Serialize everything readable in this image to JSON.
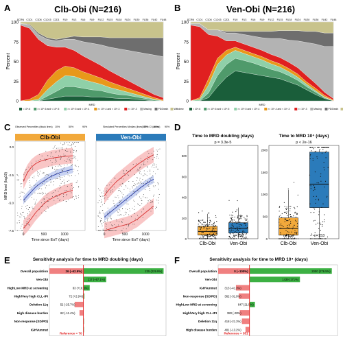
{
  "panels": {
    "A": {
      "letter": "A",
      "title": "Clb-Obi (N=216)"
    },
    "B": {
      "letter": "B",
      "title": "Ven-Obi (N=216)"
    },
    "C": {
      "letter": "C"
    },
    "D": {
      "letter": "D"
    },
    "E": {
      "letter": "E"
    },
    "F": {
      "letter": "F"
    }
  },
  "chart_data": [
    {
      "id": "A",
      "type": "area",
      "title": "Clb-Obi (N=216)",
      "ylabel": "Percent",
      "xlabel": "MRD",
      "ylim": [
        0,
        100
      ],
      "yticks": [
        0,
        25,
        50,
        75,
        100
      ],
      "categories": [
        "SCRN",
        "C1D1",
        "C1D8",
        "C1D15",
        "C2D1",
        "FU0",
        "FU3",
        "FU6",
        "FU9",
        "FU12",
        "FU15",
        "FU18",
        "FU24",
        "FU30",
        "FU36",
        "FU42",
        "FU48"
      ],
      "series": [
        {
          "name": "< 10^-6",
          "color": "#1a5e3a",
          "values": [
            0,
            0,
            0,
            2,
            4,
            6,
            6,
            6,
            5,
            5,
            4,
            3,
            3,
            2,
            1,
            0,
            0
          ]
        },
        {
          "name": ">= 10^-6 and < 10^-5",
          "color": "#4f9a6b",
          "values": [
            0,
            0,
            0,
            4,
            8,
            12,
            12,
            10,
            9,
            8,
            6,
            5,
            4,
            3,
            2,
            1,
            0
          ]
        },
        {
          "name": ">= 10^-5 and < 10^-4",
          "color": "#8fd0a8",
          "values": [
            0,
            0,
            2,
            8,
            12,
            14,
            13,
            11,
            10,
            8,
            7,
            6,
            4,
            3,
            2,
            1,
            0
          ]
        },
        {
          "name": ">= 10^-4 and < 10^-3",
          "color": "#e8981a",
          "values": [
            0,
            2,
            6,
            12,
            14,
            12,
            11,
            10,
            9,
            8,
            7,
            6,
            5,
            4,
            3,
            2,
            1
          ]
        },
        {
          "name": ">= 10^-3",
          "color": "#e02020",
          "values": [
            96,
            90,
            70,
            44,
            30,
            24,
            22,
            20,
            18,
            16,
            14,
            12,
            10,
            8,
            6,
            4,
            3
          ]
        },
        {
          "name": "Missing",
          "color": "#b3b3b3",
          "values": [
            2,
            4,
            6,
            8,
            8,
            10,
            14,
            18,
            22,
            26,
            30,
            34,
            38,
            42,
            46,
            50,
            52
          ]
        },
        {
          "name": "PD/Death",
          "color": "#6e6e6e",
          "values": [
            0,
            1,
            2,
            2,
            2,
            2,
            4,
            6,
            8,
            10,
            12,
            14,
            16,
            18,
            20,
            22,
            24
          ]
        },
        {
          "name": "Withdrew",
          "color": "#c8c38c",
          "values": [
            2,
            3,
            14,
            20,
            22,
            20,
            18,
            19,
            19,
            19,
            20,
            20,
            20,
            20,
            20,
            20,
            20
          ]
        }
      ]
    },
    {
      "id": "B",
      "type": "area",
      "title": "Ven-Obi (N=216)",
      "ylabel": "Percent",
      "xlabel": "MRD",
      "ylim": [
        0,
        100
      ],
      "yticks": [
        0,
        25,
        50,
        75,
        100
      ],
      "categories": [
        "SCRN",
        "C1D1",
        "C1D8",
        "C1D15",
        "C2D1",
        "FU0",
        "FU3",
        "FU6",
        "FU9",
        "FU12",
        "FU15",
        "FU18",
        "FU24",
        "FU30",
        "FU36",
        "FU42",
        "FU48"
      ],
      "series": [
        {
          "name": "< 10^-6",
          "color": "#1a5e3a",
          "values": [
            0,
            0,
            4,
            18,
            30,
            38,
            36,
            34,
            32,
            30,
            28,
            24,
            20,
            14,
            8,
            3,
            0
          ]
        },
        {
          "name": ">= 10^-6 and < 10^-5",
          "color": "#4f9a6b",
          "values": [
            0,
            0,
            6,
            14,
            16,
            16,
            15,
            14,
            12,
            10,
            9,
            8,
            6,
            4,
            3,
            1,
            0
          ]
        },
        {
          "name": ">= 10^-5 and < 10^-4",
          "color": "#8fd0a8",
          "values": [
            0,
            2,
            10,
            14,
            12,
            10,
            9,
            8,
            8,
            7,
            6,
            5,
            4,
            3,
            2,
            1,
            0
          ]
        },
        {
          "name": ">= 10^-4 and < 10^-3",
          "color": "#e8981a",
          "values": [
            0,
            2,
            8,
            8,
            6,
            4,
            4,
            4,
            4,
            4,
            4,
            4,
            4,
            3,
            3,
            2,
            1
          ]
        },
        {
          "name": ">= 10^-3",
          "color": "#e02020",
          "values": [
            96,
            90,
            56,
            28,
            12,
            8,
            8,
            8,
            8,
            8,
            8,
            8,
            8,
            8,
            6,
            4,
            2
          ]
        },
        {
          "name": "Missing",
          "color": "#b3b3b3",
          "values": [
            2,
            4,
            6,
            8,
            10,
            10,
            12,
            14,
            16,
            20,
            24,
            28,
            34,
            42,
            50,
            58,
            66
          ]
        },
        {
          "name": "PD/Death",
          "color": "#6e6e6e",
          "values": [
            0,
            0,
            0,
            0,
            2,
            2,
            4,
            6,
            8,
            9,
            10,
            12,
            13,
            14,
            16,
            17,
            17
          ]
        },
        {
          "name": "Withdrew",
          "color": "#c8c38c",
          "values": [
            2,
            2,
            10,
            10,
            12,
            12,
            12,
            12,
            12,
            12,
            11,
            11,
            11,
            12,
            12,
            14,
            14
          ]
        }
      ]
    },
    {
      "id": "C",
      "type": "scatter",
      "legend_observed": "Observed Percentiles (black lines)",
      "legend_simulated": "Simulated Percentiles Median (lines) 95% CI (areas)",
      "legend_pcts": [
        "10%",
        "50%",
        "90%"
      ],
      "xlabel": "Time since EoT (days)",
      "ylabel": "MRD level (log10)",
      "xlim": [
        -200,
        1500
      ],
      "xticks": [
        0,
        500,
        1000
      ],
      "ylim": [
        -7.5,
        0.5
      ],
      "yticks": [
        0.0,
        -2.5,
        -5.0,
        -7.5
      ],
      "subplots": [
        {
          "title": "Clb-Obi",
          "header_color": "#f2a93b",
          "p90": {
            "x": [
              0,
              100,
              200,
              300,
              400,
              500,
              600,
              700,
              800,
              900,
              1000,
              1100,
              1200
            ],
            "y": [
              -3.1,
              -2.3,
              -1.8,
              -1.5,
              -1.3,
              -1.2,
              -1.1,
              -1.0,
              -0.95,
              -0.9,
              -0.85,
              -0.82,
              -0.8
            ]
          },
          "p50": {
            "x": [
              0,
              100,
              200,
              300,
              400,
              500,
              600,
              700,
              800,
              900,
              1000,
              1100,
              1200
            ],
            "y": [
              -4.8,
              -4.4,
              -4.0,
              -3.6,
              -3.3,
              -3.05,
              -2.8,
              -2.6,
              -2.45,
              -2.3,
              -2.2,
              -2.1,
              -2.0
            ]
          },
          "p10": {
            "x": [
              0,
              100,
              200,
              300,
              400,
              500,
              600,
              700,
              800,
              900,
              1000,
              1100,
              1200
            ],
            "y": [
              -7.3,
              -6.9,
              -6.4,
              -5.9,
              -5.5,
              -5.1,
              -4.8,
              -4.6,
              -4.4,
              -4.25,
              -4.1,
              -4.0,
              -3.9
            ]
          }
        },
        {
          "title": "Ven-Obi",
          "header_color": "#2b7bba",
          "p90": {
            "x": [
              0,
              100,
              200,
              300,
              400,
              500,
              600,
              700,
              800,
              900,
              1000,
              1100,
              1200
            ],
            "y": [
              -4.4,
              -3.9,
              -3.5,
              -3.1,
              -2.8,
              -2.5,
              -2.2,
              -1.9,
              -1.6,
              -1.35,
              -1.1,
              -0.9,
              -0.7
            ]
          },
          "p50": {
            "x": [
              0,
              100,
              200,
              300,
              400,
              500,
              600,
              700,
              800,
              900,
              1000,
              1100,
              1200
            ],
            "y": [
              -6.3,
              -6.0,
              -5.7,
              -5.4,
              -5.1,
              -4.8,
              -4.5,
              -4.2,
              -3.9,
              -3.6,
              -3.35,
              -3.1,
              -2.9
            ]
          },
          "p10": {
            "x": [
              0,
              100,
              200,
              300,
              400,
              500,
              600,
              700,
              800,
              900,
              1000,
              1100,
              1200
            ],
            "y": [
              -7.5,
              -7.4,
              -7.3,
              -7.2,
              -7.1,
              -7.0,
              -6.9,
              -6.7,
              -6.5,
              -6.2,
              -5.9,
              -5.6,
              -5.3
            ]
          }
        }
      ]
    },
    {
      "id": "D",
      "type": "box",
      "subplots": [
        {
          "title": "Time to MRD doubling (days)",
          "pvalue": "p = 3.3e-5",
          "ylim": [
            0,
            900
          ],
          "yticks": [
            0,
            200,
            400,
            600,
            800
          ],
          "groups": [
            {
              "name": "Clb-Obi",
              "n_label": "n=154",
              "color": "#f2a93b",
              "q1": 35,
              "median": 70,
              "q3": 120,
              "whisker_low": 0,
              "whisker_high": 240
            },
            {
              "name": "Ven-Obi",
              "n_label": "n=153",
              "color": "#2b7bba",
              "q1": 55,
              "median": 100,
              "q3": 155,
              "whisker_low": 0,
              "whisker_high": 300
            }
          ]
        },
        {
          "title": "Time to MRD 10⁴ (days)",
          "pvalue": "p < 2e-16",
          "ylim": [
            0,
            2100
          ],
          "yticks": [
            0,
            500,
            1000,
            1500,
            2000
          ],
          "groups": [
            {
              "name": "Clb-Obi",
              "n_label": "n=154",
              "color": "#f2a93b",
              "q1": 80,
              "median": 230,
              "q3": 470,
              "whisker_low": 0,
              "whisker_high": 1100
            },
            {
              "name": "Ven-Obi",
              "n_label": "n=153",
              "color": "#2b7bba",
              "q1": 700,
              "median": 1230,
              "q3": 1950,
              "whisker_low": 0,
              "whisker_high": 2000
            }
          ]
        }
      ]
    },
    {
      "id": "E",
      "type": "bar",
      "title": "Sensitivity analysis for time to MRD doubling (days)",
      "reference_label": "Reference = 70",
      "reference": 70,
      "xlim": [
        0,
        240
      ],
      "categories": [
        "Overall population",
        "Ven-Obi",
        "HighLow MRD at screening",
        "High/Very high CLL-IPI",
        "Deletion 11q",
        "High disease burden",
        "Non-response (SD/PD)",
        "IGHVunmut"
      ],
      "values": [
        235,
        117,
        83,
        72,
        52,
        62,
        70,
        70
      ],
      "value_labels": [
        "235 (229.9%)",
        "117 (+67.1%)",
        "83 (+18.6%)",
        "72 (+2.9%)",
        "52 (-25.7%)",
        "62 (-11.4%)",
        "",
        ""
      ],
      "neg_label_overall": "26 (−62.9%)",
      "colors": {
        "up": "#3cb043",
        "down": "#f08080",
        "reference": "#e02020"
      }
    },
    {
      "id": "F",
      "type": "bar",
      "title": "Sensitivity analysis for time to MRD 10⁴ (days)",
      "reference_label": "Reference = 551",
      "reference": 551,
      "xlim": [
        0,
        2100
      ],
      "categories": [
        "Overall population",
        "Ven-Obi",
        "IGHVunmut",
        "Non-response (SD/PD)",
        "HighLow MRD at screening",
        "High/Very high CLL-IPI",
        "Deletion 11q",
        "High disease burden"
      ],
      "values": [
        2000,
        1439,
        313,
        362,
        647,
        380,
        418,
        481
      ],
      "value_labels": [
        "2000 (276.5%)",
        "1439 (171%)",
        "313 (-41.3%)",
        "362 (-31.9%)",
        "647 (21.5%)",
        "380 (-28%)",
        "418 (-21.3%)",
        "481 (-13.2%)"
      ],
      "neg_label_overall": "0 (−100%)",
      "colors": {
        "up": "#3cb043",
        "down": "#f08080",
        "reference": "#e02020"
      }
    }
  ]
}
